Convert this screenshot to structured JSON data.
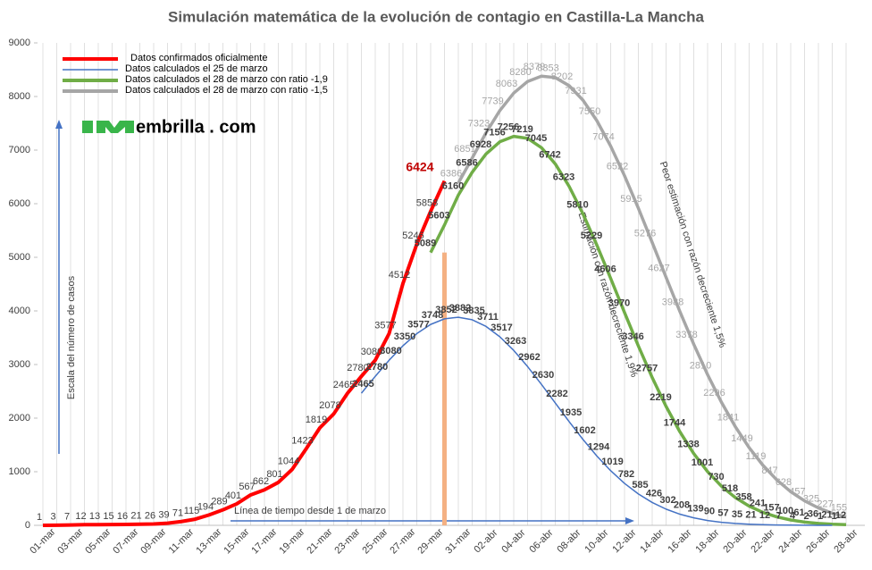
{
  "chart_data": {
    "type": "line",
    "title": "Simulación matemática de la evolución de contagio en Castilla-La Mancha",
    "y_label": "Escala del número de casos",
    "x_label": "Línea de tiempo desde 1 de marzo",
    "logo": "embrilla . com",
    "annotations": [
      "Estimación con razón decreciente 1,9%",
      "Peor estimación con razón decreciente 1,5%"
    ],
    "categories": [
      "01-mar",
      null,
      "03-mar",
      null,
      "05-mar",
      null,
      "07-mar",
      null,
      "09-mar",
      null,
      "11-mar",
      null,
      "13-mar",
      null,
      "15-mar",
      null,
      "17-mar",
      null,
      "19-mar",
      null,
      "21-mar",
      null,
      "23-mar",
      null,
      "25-mar",
      null,
      "27-mar",
      null,
      "29-mar",
      null,
      "31-mar",
      null,
      "02-abr",
      null,
      "04-abr",
      null,
      "06-abr",
      null,
      "08-abr",
      null,
      "10-abr",
      null,
      "12-abr",
      null,
      "14-abr",
      null,
      "16-abr",
      null,
      "18-abr",
      null,
      "20-abr",
      null,
      "22-abr",
      null,
      "24-abr",
      null,
      "26-abr",
      null,
      "28-abr"
    ],
    "ylim": [
      0,
      9000
    ],
    "yticks": [
      0,
      1000,
      2000,
      3000,
      4000,
      5000,
      6000,
      7000,
      8000,
      9000
    ],
    "series": [
      {
        "name": "Datos confirmados oficialmente",
        "color": "#ff0000",
        "values": [
          1,
          3,
          7,
          12,
          13,
          15,
          16,
          21,
          26,
          39,
          71,
          115,
          194,
          289,
          401,
          567,
          662,
          801,
          1044,
          1423,
          1819,
          2078,
          2465,
          2780,
          3080,
          3577,
          4512,
          5246,
          5858,
          6424,
          null,
          null,
          null,
          null,
          null,
          null,
          null,
          null,
          null,
          null,
          null,
          null,
          null,
          null,
          null,
          null,
          null,
          null,
          null,
          null,
          null,
          null,
          null,
          null,
          null,
          null,
          null,
          null,
          null
        ]
      },
      {
        "name": "Datos calculados el 25 de marzo",
        "color": "#4472c4",
        "values": [
          null,
          null,
          null,
          null,
          null,
          null,
          null,
          null,
          null,
          null,
          null,
          null,
          null,
          null,
          null,
          null,
          null,
          null,
          null,
          null,
          null,
          null,
          null,
          2465,
          2780,
          3080,
          3350,
          3577,
          3748,
          3852,
          3882,
          3835,
          3711,
          3517,
          3263,
          2962,
          2630,
          2282,
          1935,
          1602,
          1294,
          1019,
          782,
          585,
          426,
          302,
          208,
          139,
          90,
          57,
          35,
          21,
          12,
          7,
          4,
          2,
          1,
          1,
          null
        ]
      },
      {
        "name": "Datos calculados el 28 de marzo con ratio -1,9",
        "color": "#70ad47",
        "values": [
          null,
          null,
          null,
          null,
          null,
          null,
          null,
          null,
          null,
          null,
          null,
          null,
          null,
          null,
          null,
          null,
          null,
          null,
          null,
          null,
          null,
          null,
          null,
          null,
          null,
          null,
          null,
          null,
          5089,
          5603,
          6160,
          6586,
          6928,
          7156,
          7256,
          7219,
          7045,
          6742,
          6323,
          5810,
          5229,
          4606,
          3970,
          3346,
          2757,
          2219,
          1744,
          1338,
          1001,
          730,
          518,
          358,
          241,
          157,
          100,
          61,
          36,
          21,
          12
        ]
      },
      {
        "name": "Datos calculados el 28 de marzo con ratio -1,5",
        "color": "#a6a6a6",
        "values": [
          null,
          null,
          null,
          null,
          null,
          null,
          null,
          null,
          null,
          null,
          null,
          null,
          null,
          null,
          null,
          null,
          null,
          null,
          null,
          null,
          null,
          null,
          null,
          null,
          null,
          null,
          null,
          null,
          null,
          null,
          6386,
          6851,
          7323,
          7739,
          8063,
          8280,
          8379,
          8353,
          8202,
          7931,
          7550,
          7074,
          6522,
          5915,
          5276,
          4627,
          3988,
          3378,
          2810,
          2296,
          1841,
          1449,
          1119,
          847,
          628,
          457,
          325,
          227,
          155
        ]
      }
    ]
  }
}
